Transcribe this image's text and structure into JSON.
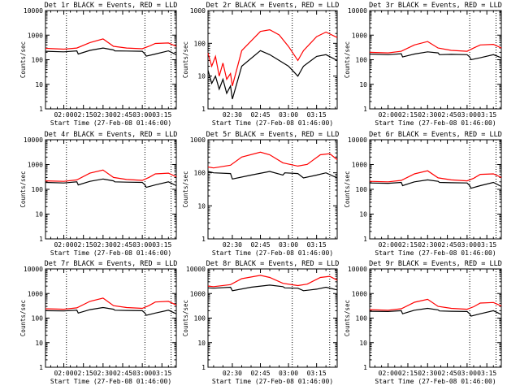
{
  "figure": {
    "xlabel": "Start Time (27-Feb-08 01:46:00)",
    "ylabel": "Counts/sec",
    "x_ticks": [
      "02:00",
      "02:15",
      "02:30",
      "02:45",
      "03:00",
      "03:15"
    ],
    "x_range": [
      "01:46",
      "03:26"
    ],
    "y_ticks": [
      "1",
      "10",
      "100",
      "1000",
      "10000"
    ],
    "y_range": [
      1,
      10000
    ],
    "y_scale": "log",
    "colors": {
      "events": "#000000",
      "lld": "#ff0000"
    }
  },
  "chart_data": [
    {
      "type": "line",
      "title": "Det 1r BLACK = Events, RED = LLD",
      "dotted_lines": [
        "02:02",
        "03:02",
        "03:22"
      ],
      "x_range": [
        "01:46",
        "03:26"
      ],
      "y_range": [
        1,
        10000
      ],
      "series": [
        {
          "name": "Events",
          "color": "#000000",
          "x": [
            "01:46",
            "02:00",
            "02:10",
            "02:11",
            "02:20",
            "02:30",
            "02:38",
            "02:39",
            "02:48",
            "03:00",
            "03:02",
            "03:03",
            "03:10",
            "03:20",
            "03:26"
          ],
          "y": [
            220,
            210,
            230,
            170,
            240,
            300,
            250,
            230,
            225,
            220,
            170,
            140,
            170,
            230,
            160
          ]
        },
        {
          "name": "LLD",
          "color": "#ff0000",
          "x": [
            "01:46",
            "02:00",
            "02:10",
            "02:20",
            "02:30",
            "02:38",
            "02:48",
            "03:00",
            "03:05",
            "03:10",
            "03:20",
            "03:26"
          ],
          "y": [
            290,
            270,
            300,
            500,
            700,
            350,
            300,
            280,
            350,
            460,
            480,
            350
          ]
        }
      ]
    },
    {
      "type": "line",
      "title": "Det 2r BLACK = Events, RED = LLD",
      "dotted_lines": [
        "02:02",
        "03:02",
        "03:22"
      ],
      "x_range": [
        "02:17",
        "03:26"
      ],
      "y_range": [
        1,
        1000
      ],
      "series": [
        {
          "name": "Events",
          "color": "#000000",
          "x": [
            "02:17",
            "02:19",
            "02:21",
            "02:23",
            "02:25",
            "02:27",
            "02:29",
            "02:30",
            "02:35",
            "02:45",
            "02:50",
            "02:55",
            "03:00",
            "03:05",
            "03:08",
            "03:15",
            "03:20",
            "03:26"
          ],
          "y": [
            15,
            6,
            10,
            4,
            8,
            3,
            5,
            2,
            20,
            60,
            45,
            30,
            20,
            10,
            20,
            40,
            45,
            30
          ]
        },
        {
          "name": "LLD",
          "color": "#ff0000",
          "x": [
            "02:17",
            "02:19",
            "02:21",
            "02:23",
            "02:25",
            "02:27",
            "02:29",
            "02:30",
            "02:35",
            "02:45",
            "02:50",
            "02:55",
            "03:00",
            "03:05",
            "03:08",
            "03:15",
            "03:20",
            "03:26"
          ],
          "y": [
            50,
            20,
            40,
            10,
            25,
            8,
            12,
            5,
            60,
            230,
            260,
            180,
            80,
            30,
            60,
            160,
            220,
            150
          ]
        }
      ]
    },
    {
      "type": "line",
      "title": "Det 3r BLACK = Events, RED = LLD",
      "dotted_lines": [
        "03:02",
        "03:22"
      ],
      "x_range": [
        "01:46",
        "03:26"
      ],
      "y_range": [
        1,
        10000
      ],
      "series": [
        {
          "name": "Events",
          "color": "#000000",
          "x": [
            "01:46",
            "02:00",
            "02:10",
            "02:11",
            "02:20",
            "02:30",
            "02:38",
            "02:39",
            "02:48",
            "03:00",
            "03:02",
            "03:03",
            "03:10",
            "03:20",
            "03:26"
          ],
          "y": [
            170,
            160,
            175,
            130,
            170,
            210,
            190,
            160,
            165,
            160,
            130,
            100,
            120,
            160,
            120
          ]
        },
        {
          "name": "LLD",
          "color": "#ff0000",
          "x": [
            "01:46",
            "02:00",
            "02:10",
            "02:20",
            "02:30",
            "02:38",
            "02:48",
            "03:00",
            "03:05",
            "03:10",
            "03:20",
            "03:26"
          ],
          "y": [
            200,
            190,
            220,
            400,
            550,
            300,
            240,
            220,
            300,
            400,
            420,
            300
          ]
        }
      ]
    },
    {
      "type": "line",
      "title": "Det 4r BLACK = Events, RED = LLD",
      "dotted_lines": [
        "02:02",
        "03:02",
        "03:22"
      ],
      "x_range": [
        "01:46",
        "03:26"
      ],
      "y_range": [
        1,
        10000
      ],
      "series": [
        {
          "name": "Events",
          "color": "#000000",
          "x": [
            "01:46",
            "02:00",
            "02:10",
            "02:11",
            "02:20",
            "02:30",
            "02:38",
            "02:39",
            "02:48",
            "03:00",
            "03:02",
            "03:03",
            "03:10",
            "03:20",
            "03:26"
          ],
          "y": [
            190,
            180,
            200,
            150,
            210,
            260,
            220,
            200,
            195,
            190,
            150,
            120,
            150,
            200,
            140
          ]
        },
        {
          "name": "LLD",
          "color": "#ff0000",
          "x": [
            "01:46",
            "02:00",
            "02:10",
            "02:20",
            "02:30",
            "02:38",
            "02:48",
            "03:00",
            "03:05",
            "03:10",
            "03:20",
            "03:26"
          ],
          "y": [
            220,
            210,
            240,
            450,
            600,
            300,
            250,
            230,
            300,
            420,
            450,
            320
          ]
        }
      ]
    },
    {
      "type": "line",
      "title": "Det 5r BLACK = Events, RED = LLD",
      "dotted_lines": [
        "02:02",
        "03:02",
        "03:22"
      ],
      "x_range": [
        "02:17",
        "03:26"
      ],
      "y_range": [
        1,
        1000
      ],
      "series": [
        {
          "name": "Events",
          "color": "#000000",
          "x": [
            "02:17",
            "02:20",
            "02:29",
            "02:30",
            "02:40",
            "02:50",
            "02:57",
            "02:58",
            "03:05",
            "03:08",
            "03:15",
            "03:20",
            "03:26"
          ],
          "y": [
            110,
            100,
            95,
            65,
            85,
            110,
            85,
            100,
            95,
            70,
            85,
            100,
            70
          ]
        },
        {
          "name": "LLD",
          "color": "#ff0000",
          "x": [
            "02:17",
            "02:20",
            "02:29",
            "02:35",
            "02:45",
            "02:50",
            "02:57",
            "03:05",
            "03:10",
            "03:17",
            "03:22",
            "03:26"
          ],
          "y": [
            150,
            140,
            170,
            300,
            420,
            350,
            200,
            160,
            180,
            350,
            380,
            250
          ]
        }
      ]
    },
    {
      "type": "line",
      "title": "Det 6r BLACK = Events, RED = LLD",
      "dotted_lines": [
        "03:02",
        "03:22"
      ],
      "x_range": [
        "01:46",
        "03:26"
      ],
      "y_range": [
        1,
        10000
      ],
      "series": [
        {
          "name": "Events",
          "color": "#000000",
          "x": [
            "01:46",
            "02:00",
            "02:10",
            "02:11",
            "02:20",
            "02:30",
            "02:38",
            "02:39",
            "02:48",
            "03:00",
            "03:02",
            "03:03",
            "03:10",
            "03:20",
            "03:26"
          ],
          "y": [
            180,
            175,
            190,
            140,
            200,
            240,
            210,
            190,
            185,
            180,
            140,
            110,
            140,
            190,
            130
          ]
        },
        {
          "name": "LLD",
          "color": "#ff0000",
          "x": [
            "01:46",
            "02:00",
            "02:10",
            "02:20",
            "02:30",
            "02:38",
            "02:48",
            "03:00",
            "03:05",
            "03:10",
            "03:20",
            "03:26"
          ],
          "y": [
            210,
            200,
            230,
            420,
            560,
            290,
            240,
            220,
            280,
            400,
            420,
            300
          ]
        }
      ]
    },
    {
      "type": "line",
      "title": "Det 7r BLACK = Events, RED = LLD",
      "dotted_lines": [
        "02:02",
        "03:02",
        "03:22"
      ],
      "x_range": [
        "01:46",
        "03:26"
      ],
      "y_range": [
        1,
        10000
      ],
      "series": [
        {
          "name": "Events",
          "color": "#000000",
          "x": [
            "01:46",
            "02:00",
            "02:10",
            "02:11",
            "02:20",
            "02:30",
            "02:38",
            "02:39",
            "02:48",
            "03:00",
            "03:02",
            "03:03",
            "03:10",
            "03:20",
            "03:26"
          ],
          "y": [
            200,
            195,
            210,
            160,
            220,
            270,
            230,
            210,
            205,
            200,
            160,
            130,
            160,
            210,
            150
          ]
        },
        {
          "name": "LLD",
          "color": "#ff0000",
          "x": [
            "01:46",
            "02:00",
            "02:10",
            "02:20",
            "02:30",
            "02:38",
            "02:48",
            "03:00",
            "03:05",
            "03:10",
            "03:20",
            "03:26"
          ],
          "y": [
            240,
            230,
            260,
            480,
            650,
            320,
            270,
            250,
            320,
            450,
            480,
            340
          ]
        }
      ]
    },
    {
      "type": "line",
      "title": "Det 8r BLACK = Events, RED = LLD",
      "dotted_lines": [
        "02:02",
        "03:02",
        "03:22"
      ],
      "x_range": [
        "02:17",
        "03:26"
      ],
      "y_range": [
        1,
        10000
      ],
      "series": [
        {
          "name": "Events",
          "color": "#000000",
          "x": [
            "02:17",
            "02:20",
            "02:29",
            "02:30",
            "02:40",
            "02:50",
            "02:57",
            "02:58",
            "03:05",
            "03:08",
            "03:15",
            "03:20",
            "03:26"
          ],
          "y": [
            1700,
            1650,
            1800,
            1300,
            1800,
            2200,
            1900,
            1700,
            1650,
            1300,
            1500,
            1800,
            1400
          ]
        },
        {
          "name": "LLD",
          "color": "#ff0000",
          "x": [
            "02:17",
            "02:20",
            "02:29",
            "02:35",
            "02:45",
            "02:50",
            "02:57",
            "03:05",
            "03:10",
            "03:17",
            "03:22",
            "03:26"
          ],
          "y": [
            2000,
            1900,
            2300,
            4000,
            5500,
            4500,
            2600,
            2100,
            2400,
            4500,
            5000,
            3500
          ]
        }
      ]
    },
    {
      "type": "line",
      "title": "Det 9r BLACK = Events, RED = LLD",
      "dotted_lines": [
        "03:02",
        "03:22"
      ],
      "x_range": [
        "01:46",
        "03:26"
      ],
      "y_range": [
        1,
        10000
      ],
      "series": [
        {
          "name": "Events",
          "color": "#000000",
          "x": [
            "01:46",
            "02:00",
            "02:10",
            "02:11",
            "02:20",
            "02:30",
            "02:38",
            "02:39",
            "02:48",
            "03:00",
            "03:02",
            "03:03",
            "03:10",
            "03:20",
            "03:26"
          ],
          "y": [
            190,
            185,
            200,
            150,
            210,
            250,
            215,
            195,
            190,
            185,
            150,
            120,
            150,
            200,
            140
          ]
        },
        {
          "name": "LLD",
          "color": "#ff0000",
          "x": [
            "01:46",
            "02:00",
            "02:10",
            "02:20",
            "02:30",
            "02:38",
            "02:48",
            "03:00",
            "03:05",
            "03:10",
            "03:20",
            "03:26"
          ],
          "y": [
            220,
            210,
            240,
            440,
            580,
            300,
            250,
            230,
            290,
            410,
            430,
            310
          ]
        }
      ]
    }
  ]
}
